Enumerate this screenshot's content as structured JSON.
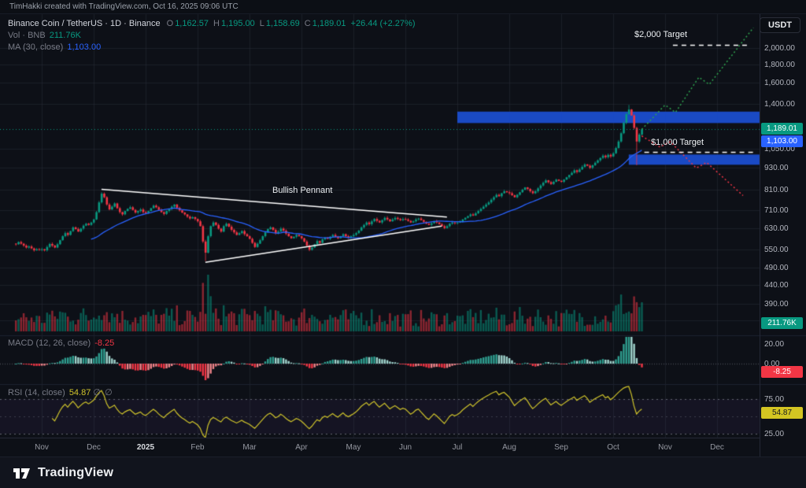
{
  "attribution": "TimHakki created with TradingView.com, Oct 16, 2025 09:06 UTC",
  "currency_button": "USDT",
  "footer": {
    "brand": "TradingView"
  },
  "legend": {
    "symbol": "Binance Coin / TetherUS · 1D · Binance",
    "open_label": "O",
    "open": "1,162.57",
    "high_label": "H",
    "high": "1,195.00",
    "low_label": "L",
    "low": "1,158.69",
    "close_label": "C",
    "close": "1,189.01",
    "change": "+26.44 (+2.27%)",
    "volume_label": "Vol · BNB",
    "volume_value": "211.76K",
    "ma_label": "MA (30, close)",
    "ma_value": "1,103.00"
  },
  "macd_legend": {
    "label": "MACD (12, 26, close)",
    "value": "-8.25"
  },
  "rsi_legend": {
    "label": "RSI (14, close)",
    "value": "54.87",
    "extra1": "∅",
    "extra2": "∅"
  },
  "badges": {
    "last_price": "1,189.01",
    "ma": "1,103.00",
    "volume": "211.76K",
    "macd": "-8.25",
    "rsi": "54.87"
  },
  "chart_data": {
    "type": "candlestick",
    "title": "Binance Coin / TetherUS · 1D · Binance",
    "scale": "log",
    "price_ticks": [
      {
        "label": "2,000.00",
        "value": 2000
      },
      {
        "label": "1,800.00",
        "value": 1800
      },
      {
        "label": "1,600.00",
        "value": 1600
      },
      {
        "label": "1,400.00",
        "value": 1400
      },
      {
        "label": "1,050.00",
        "value": 1050
      },
      {
        "label": "930.00",
        "value": 930
      },
      {
        "label": "810.00",
        "value": 810
      },
      {
        "label": "710.00",
        "value": 710
      },
      {
        "label": "630.00",
        "value": 630
      },
      {
        "label": "550.00",
        "value": 550
      },
      {
        "label": "490.00",
        "value": 490
      },
      {
        "label": "440.00",
        "value": 440
      },
      {
        "label": "390.00",
        "value": 390
      },
      {
        "label": "350.00",
        "value": 350
      }
    ],
    "macd_ticks": [
      {
        "label": "20.00",
        "value": 20
      },
      {
        "label": "0.00",
        "value": 0
      }
    ],
    "rsi_ticks": [
      {
        "label": "75.00",
        "value": 75
      },
      {
        "label": "25.00",
        "value": 25
      }
    ],
    "time_ticks": [
      {
        "label": "Nov"
      },
      {
        "label": "Dec"
      },
      {
        "label": "2025",
        "major": true
      },
      {
        "label": "Feb"
      },
      {
        "label": "Mar"
      },
      {
        "label": "Apr"
      },
      {
        "label": "May"
      },
      {
        "label": "Jun"
      },
      {
        "label": "Jul"
      },
      {
        "label": "Aug"
      },
      {
        "label": "Sep"
      },
      {
        "label": "Oct"
      },
      {
        "label": "Nov"
      },
      {
        "label": "Dec"
      }
    ],
    "closes": [
      570,
      578,
      572,
      565,
      558,
      562,
      555,
      548,
      552,
      550,
      552,
      548,
      560,
      571,
      565,
      558,
      570,
      585,
      600,
      612,
      605,
      620,
      635,
      628,
      618,
      630,
      642,
      650,
      645,
      655,
      668,
      700,
      745,
      788,
      770,
      735,
      712,
      725,
      740,
      718,
      700,
      690,
      705,
      715,
      722,
      710,
      698,
      705,
      712,
      700,
      695,
      705,
      718,
      730,
      722,
      710,
      700,
      692,
      705,
      715,
      725,
      735,
      720,
      708,
      698,
      690,
      680,
      672,
      678,
      670,
      660,
      640,
      580,
      540,
      600,
      640,
      655,
      645,
      630,
      618,
      640,
      650,
      638,
      625,
      615,
      605,
      612,
      620,
      608,
      600,
      590,
      575,
      560,
      572,
      585,
      600,
      615,
      628,
      635,
      625,
      612,
      618,
      630,
      622,
      610,
      600,
      592,
      598,
      605,
      600,
      592,
      580,
      565,
      550,
      558,
      570,
      582,
      575,
      588,
      595,
      590,
      598,
      605,
      598,
      592,
      600,
      608,
      600,
      595,
      600,
      605,
      612,
      622,
      635,
      645,
      655,
      648,
      660,
      670,
      662,
      655,
      665,
      675,
      668,
      660,
      668,
      675,
      670,
      665,
      670,
      668,
      662,
      655,
      660,
      668,
      672,
      665,
      658,
      650,
      645,
      652,
      660,
      655,
      648,
      640,
      632,
      640,
      650,
      655,
      652,
      655,
      660,
      668,
      675,
      682,
      690,
      685,
      695,
      705,
      715,
      725,
      735,
      745,
      758,
      770,
      782,
      775,
      790,
      800,
      795,
      790,
      780,
      770,
      782,
      795,
      808,
      820,
      812,
      800,
      790,
      800,
      815,
      830,
      845,
      858,
      848,
      838,
      850,
      862,
      855,
      850,
      862,
      875,
      888,
      900,
      915,
      905,
      920,
      935,
      950,
      942,
      930,
      945,
      960,
      975,
      990,
      1005,
      995,
      1010,
      1000,
      1020,
      1055,
      1100,
      1160,
      1240,
      1310,
      1350,
      1300,
      1200,
      1100,
      1150,
      1189
    ],
    "special_wicks": [
      {
        "index": 73,
        "low": 512
      },
      {
        "index": 236,
        "high": 1390
      },
      {
        "index": 239,
        "low": 945
      }
    ],
    "last_price": 1189.01,
    "ma_period": 30,
    "ma_last": 1103.0,
    "macd": {
      "fast": 12,
      "slow": 26,
      "signal": 9,
      "last": -8.25
    },
    "rsi": {
      "period": 14,
      "last": 54.87,
      "upper": 75,
      "lower": 25,
      "mid": 50
    },
    "annotations": {
      "pennant": {
        "label": "Bullish Pennant",
        "lines": [
          {
            "from": [
              33,
              810
            ],
            "to": [
              166,
              678
            ]
          },
          {
            "from": [
              73,
              508
            ],
            "to": [
              164,
              640
            ]
          }
        ]
      },
      "targets": [
        {
          "label": "$2,000 Target",
          "price": 2041,
          "from_index": 253,
          "to_index": 283
        },
        {
          "label": "$1,000 Target",
          "price": 1028,
          "from_index": 242,
          "to_index": 284
        }
      ],
      "boxes": [
        {
          "price_top": 1332,
          "price_bottom": 1238,
          "from_index": 170,
          "to_index": 287
        },
        {
          "price_top": 1012,
          "price_bottom": 948,
          "from_index": 236,
          "to_index": 287
        }
      ],
      "projections": [
        {
          "color": "#2fa34f",
          "points": [
            [
              241,
              1189
            ],
            [
              250,
              1390
            ],
            [
              254,
              1325
            ],
            [
              263,
              1660
            ],
            [
              267,
              1585
            ],
            [
              284,
              2280
            ]
          ]
        },
        {
          "color": "#f23645",
          "points": [
            [
              241,
              1140
            ],
            [
              248,
              1062
            ],
            [
              252,
              1098
            ],
            [
              262,
              928
            ],
            [
              266,
              962
            ],
            [
              280,
              778
            ]
          ]
        }
      ]
    },
    "colors": {
      "up": "#089981",
      "down": "#f23645",
      "ma": "#2962ff",
      "rsi_line": "#d0c42c",
      "box": "rgba(27,79,212,0.92)",
      "target_line": "#ffffff",
      "last_price_line": "#089981",
      "vol_up": "rgba(8,153,129,0.55)",
      "vol_down": "rgba(242,54,69,0.55)"
    }
  }
}
